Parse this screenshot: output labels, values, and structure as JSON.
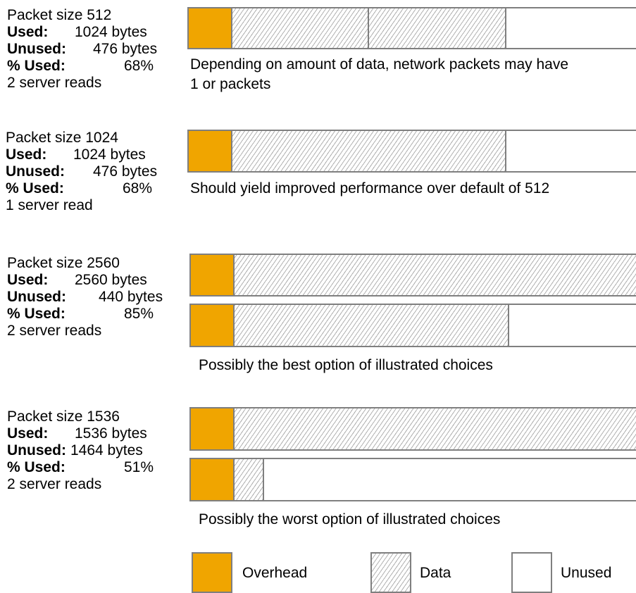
{
  "colors": {
    "overhead": "#f0a500",
    "data_hatch": "#b0b0b0",
    "border": "#7f7f7f"
  },
  "scenarios": [
    {
      "packet_size": "Packet size 512",
      "used_label": "Used:",
      "used_value": "1024 bytes",
      "unused_label": "Unused:",
      "unused_value": "476 bytes",
      "pct_label": "% Used:",
      "pct_value": "68%",
      "reads": "2 server reads",
      "caption_line1": "Depending on amount of data, network packets may have",
      "caption_line2": "1 or packets"
    },
    {
      "packet_size": "Packet size 1024",
      "used_label": "Used:",
      "used_value": "1024 bytes",
      "unused_label": "Unused:",
      "unused_value": "476 bytes",
      "pct_label": "% Used:",
      "pct_value": "68%",
      "reads": "1 server read",
      "caption_line1": "Should yield improved performance over default of 512"
    },
    {
      "packet_size": "Packet size 2560",
      "used_label": "Used:",
      "used_value": "2560 bytes",
      "unused_label": "Unused:",
      "unused_value": "440 bytes",
      "pct_label": "% Used:",
      "pct_value": "85%",
      "reads": "2 server reads",
      "caption_line1": "Possibly the best option of illustrated choices"
    },
    {
      "packet_size": "Packet size 1536",
      "used_label": "Used:",
      "used_value": "1536 bytes",
      "unused_label": "Unused:",
      "unused_value": "1464 bytes",
      "pct_label": "% Used:",
      "pct_value": "51%",
      "reads": "2 server reads",
      "caption_line1": "Possibly the worst option of illustrated choices"
    }
  ],
  "legend": {
    "overhead": "Overhead",
    "data": "Data",
    "unused": "Unused"
  }
}
